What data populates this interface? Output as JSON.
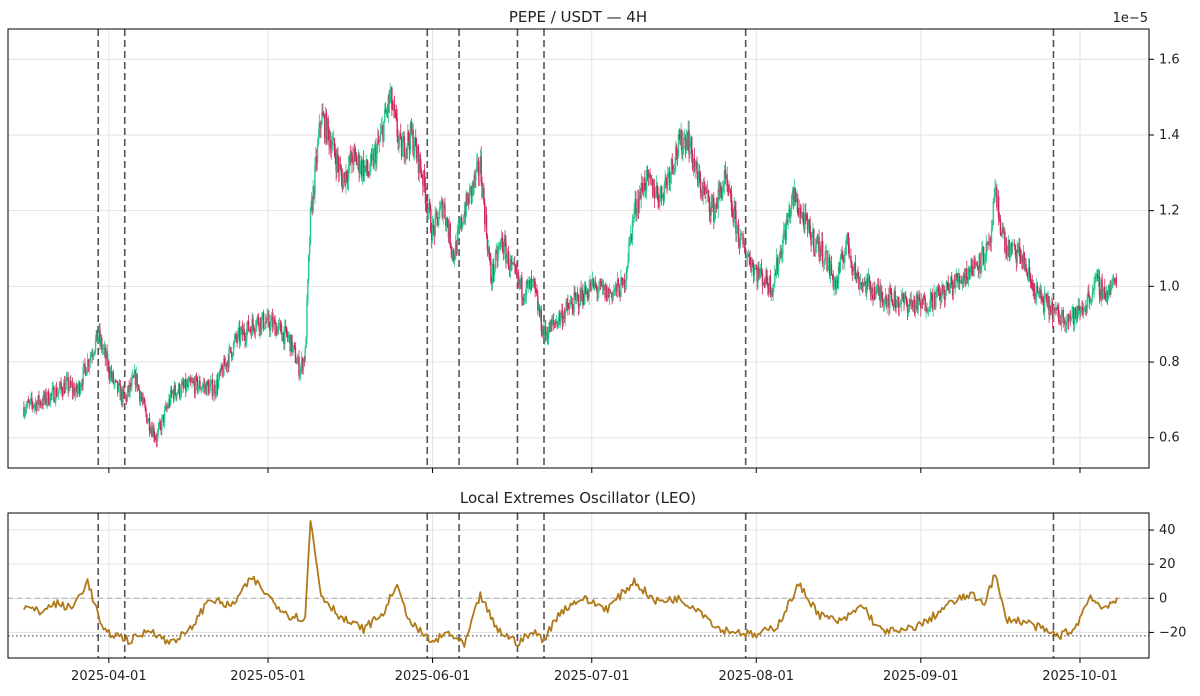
{
  "chart_data": [
    {
      "type": "candlestick",
      "title": "PEPE / USDT — 4H",
      "y_scale_label": "1e−5",
      "ylim": [
        0.52,
        1.68
      ],
      "y_ticks": [
        0.6,
        0.8,
        1.0,
        1.2,
        1.4,
        1.6
      ],
      "y_tick_labels": [
        "0.6",
        "0.8",
        "1.0",
        "1.2",
        "1.4",
        "1.6"
      ],
      "x_range": [
        "2025-03-13",
        "2025-10-14"
      ],
      "grid": true,
      "colors": {
        "up": "#26c98a",
        "down": "#d0245a"
      },
      "close_path": [
        [
          "2025-03-16",
          0.68
        ],
        [
          "2025-03-20",
          0.7
        ],
        [
          "2025-03-24",
          0.74
        ],
        [
          "2025-03-26",
          0.72
        ],
        [
          "2025-03-28",
          0.8
        ],
        [
          "2025-03-30",
          0.87
        ],
        [
          "2025-04-02",
          0.74
        ],
        [
          "2025-04-04",
          0.7
        ],
        [
          "2025-04-06",
          0.76
        ],
        [
          "2025-04-08",
          0.66
        ],
        [
          "2025-04-10",
          0.6
        ],
        [
          "2025-04-13",
          0.72
        ],
        [
          "2025-04-17",
          0.74
        ],
        [
          "2025-04-21",
          0.73
        ],
        [
          "2025-04-25",
          0.86
        ],
        [
          "2025-04-29",
          0.91
        ],
        [
          "2025-05-02",
          0.9
        ],
        [
          "2025-05-05",
          0.86
        ],
        [
          "2025-05-07",
          0.78
        ],
        [
          "2025-05-08",
          0.82
        ],
        [
          "2025-05-09",
          1.18
        ],
        [
          "2025-05-11",
          1.45
        ],
        [
          "2025-05-13",
          1.38
        ],
        [
          "2025-05-15",
          1.28
        ],
        [
          "2025-05-17",
          1.34
        ],
        [
          "2025-05-20",
          1.3
        ],
        [
          "2025-05-22",
          1.38
        ],
        [
          "2025-05-24",
          1.5
        ],
        [
          "2025-05-26",
          1.36
        ],
        [
          "2025-05-28",
          1.4
        ],
        [
          "2025-05-30",
          1.3
        ],
        [
          "2025-06-01",
          1.14
        ],
        [
          "2025-06-03",
          1.22
        ],
        [
          "2025-06-05",
          1.08
        ],
        [
          "2025-06-07",
          1.2
        ],
        [
          "2025-06-10",
          1.32
        ],
        [
          "2025-06-12",
          1.02
        ],
        [
          "2025-06-14",
          1.12
        ],
        [
          "2025-06-16",
          1.04
        ],
        [
          "2025-06-18",
          0.99
        ],
        [
          "2025-06-20",
          1.0
        ],
        [
          "2025-06-22",
          0.87
        ],
        [
          "2025-06-25",
          0.92
        ],
        [
          "2025-06-28",
          0.96
        ],
        [
          "2025-07-01",
          1.0
        ],
        [
          "2025-07-04",
          0.98
        ],
        [
          "2025-07-07",
          1.0
        ],
        [
          "2025-07-09",
          1.2
        ],
        [
          "2025-07-11",
          1.28
        ],
        [
          "2025-07-14",
          1.24
        ],
        [
          "2025-07-17",
          1.36
        ],
        [
          "2025-07-19",
          1.4
        ],
        [
          "2025-07-21",
          1.28
        ],
        [
          "2025-07-24",
          1.2
        ],
        [
          "2025-07-26",
          1.28
        ],
        [
          "2025-07-29",
          1.12
        ],
        [
          "2025-08-01",
          1.04
        ],
        [
          "2025-08-04",
          1.0
        ],
        [
          "2025-08-06",
          1.12
        ],
        [
          "2025-08-08",
          1.24
        ],
        [
          "2025-08-11",
          1.14
        ],
        [
          "2025-08-14",
          1.08
        ],
        [
          "2025-08-16",
          1.0
        ],
        [
          "2025-08-18",
          1.12
        ],
        [
          "2025-08-20",
          1.02
        ],
        [
          "2025-08-24",
          0.98
        ],
        [
          "2025-08-28",
          0.96
        ],
        [
          "2025-09-01",
          0.95
        ],
        [
          "2025-09-05",
          0.98
        ],
        [
          "2025-09-10",
          1.04
        ],
        [
          "2025-09-14",
          1.1
        ],
        [
          "2025-09-15",
          1.24
        ],
        [
          "2025-09-17",
          1.1
        ],
        [
          "2025-09-20",
          1.08
        ],
        [
          "2025-09-22",
          1.0
        ],
        [
          "2025-09-24",
          0.96
        ],
        [
          "2025-09-27",
          0.92
        ],
        [
          "2025-09-30",
          0.92
        ],
        [
          "2025-10-02",
          0.95
        ],
        [
          "2025-10-04",
          1.01
        ],
        [
          "2025-10-06",
          0.98
        ],
        [
          "2025-10-08",
          1.02
        ]
      ],
      "markers": [
        "2025-03-30",
        "2025-04-04",
        "2025-05-31",
        "2025-06-06",
        "2025-06-17",
        "2025-06-22",
        "2025-07-30",
        "2025-09-26"
      ]
    },
    {
      "type": "line",
      "title": "Local Extremes Oscillator (LEO)",
      "ylim": [
        -35,
        50
      ],
      "y_ticks": [
        -20,
        0,
        20,
        40
      ],
      "y_tick_labels": [
        "−20",
        "0",
        "20",
        "40"
      ],
      "x_ticks": [
        "2025-04-01",
        "2025-05-01",
        "2025-06-01",
        "2025-07-01",
        "2025-08-01",
        "2025-09-01",
        "2025-10-01"
      ],
      "x_tick_labels": [
        "2025-04-01",
        "2025-05-01",
        "2025-06-01",
        "2025-07-01",
        "2025-08-01",
        "2025-09-01",
        "2025-10-01"
      ],
      "grid": true,
      "series": [
        {
          "color": "#b07a1a",
          "points": [
            [
              "2025-03-16",
              -5
            ],
            [
              "2025-03-19",
              -8
            ],
            [
              "2025-03-22",
              -3
            ],
            [
              "2025-03-25",
              -6
            ],
            [
              "2025-03-28",
              10
            ],
            [
              "2025-03-31",
              -20
            ],
            [
              "2025-04-03",
              -22
            ],
            [
              "2025-04-05",
              -25
            ],
            [
              "2025-04-09",
              -18
            ],
            [
              "2025-04-12",
              -26
            ],
            [
              "2025-04-16",
              -20
            ],
            [
              "2025-04-20",
              0
            ],
            [
              "2025-04-24",
              -5
            ],
            [
              "2025-04-28",
              12
            ],
            [
              "2025-05-02",
              -2
            ],
            [
              "2025-05-05",
              -10
            ],
            [
              "2025-05-08",
              -12
            ],
            [
              "2025-05-09",
              46
            ],
            [
              "2025-05-11",
              2
            ],
            [
              "2025-05-15",
              -12
            ],
            [
              "2025-05-19",
              -18
            ],
            [
              "2025-05-23",
              -8
            ],
            [
              "2025-05-25",
              8
            ],
            [
              "2025-05-28",
              -15
            ],
            [
              "2025-06-01",
              -26
            ],
            [
              "2025-06-04",
              -20
            ],
            [
              "2025-06-07",
              -28
            ],
            [
              "2025-06-10",
              2
            ],
            [
              "2025-06-13",
              -18
            ],
            [
              "2025-06-17",
              -26
            ],
            [
              "2025-06-20",
              -20
            ],
            [
              "2025-06-22",
              -24
            ],
            [
              "2025-06-25",
              -8
            ],
            [
              "2025-06-29",
              0
            ],
            [
              "2025-07-04",
              -6
            ],
            [
              "2025-07-09",
              10
            ],
            [
              "2025-07-13",
              -2
            ],
            [
              "2025-07-17",
              0
            ],
            [
              "2025-07-21",
              -6
            ],
            [
              "2025-07-25",
              -18
            ],
            [
              "2025-07-29",
              -20
            ],
            [
              "2025-08-01",
              -22
            ],
            [
              "2025-08-05",
              -16
            ],
            [
              "2025-08-09",
              8
            ],
            [
              "2025-08-13",
              -10
            ],
            [
              "2025-08-17",
              -14
            ],
            [
              "2025-08-21",
              -4
            ],
            [
              "2025-08-24",
              -18
            ],
            [
              "2025-08-28",
              -20
            ],
            [
              "2025-09-02",
              -14
            ],
            [
              "2025-09-06",
              -4
            ],
            [
              "2025-09-10",
              2
            ],
            [
              "2025-09-13",
              -2
            ],
            [
              "2025-09-15",
              14
            ],
            [
              "2025-09-17",
              -12
            ],
            [
              "2025-09-21",
              -14
            ],
            [
              "2025-09-25",
              -20
            ],
            [
              "2025-09-27",
              -22
            ],
            [
              "2025-09-30",
              -18
            ],
            [
              "2025-10-03",
              2
            ],
            [
              "2025-10-05",
              -6
            ],
            [
              "2025-10-07",
              -2
            ],
            [
              "2025-10-08",
              -2
            ]
          ]
        }
      ],
      "reference_lines": [
        {
          "y": 0,
          "style": "dashed"
        },
        {
          "y": -22,
          "style": "dotted"
        }
      ],
      "markers": [
        "2025-03-30",
        "2025-04-04",
        "2025-05-31",
        "2025-06-06",
        "2025-06-17",
        "2025-06-22",
        "2025-07-30",
        "2025-09-26"
      ]
    }
  ]
}
